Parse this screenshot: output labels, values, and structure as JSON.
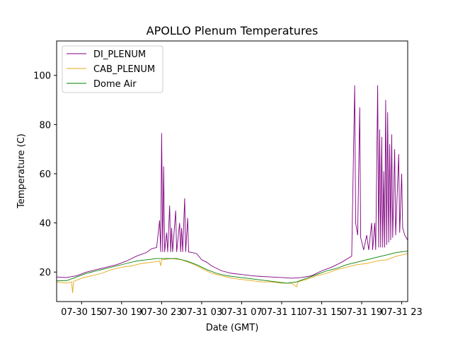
{
  "chart_data": {
    "type": "line",
    "title": "APOLLO Plenum Temperatures",
    "xlabel": "Date (GMT)",
    "ylabel": "Temperature (C)",
    "xlim": [
      12.5,
      47.6
    ],
    "ylim": [
      8,
      114
    ],
    "x_unit_note_hidden": "",
    "x_ticks": [
      {
        "x": 15,
        "label": "07-30 15"
      },
      {
        "x": 19,
        "label": "07-30 19"
      },
      {
        "x": 23,
        "label": "07-30 23"
      },
      {
        "x": 27,
        "label": "07-31 03"
      },
      {
        "x": 31,
        "label": "07-31 07"
      },
      {
        "x": 35,
        "label": "07-31 11"
      },
      {
        "x": 39,
        "label": "07-31 15"
      },
      {
        "x": 43,
        "label": "07-31 19"
      },
      {
        "x": 47,
        "label": "07-31 23"
      }
    ],
    "y_ticks": [
      20,
      40,
      60,
      80,
      100
    ],
    "grid": false,
    "legend_position": "top-left",
    "series": [
      {
        "name": "DI_PLENUM",
        "color": "#800080",
        "points": [
          [
            12.5,
            18.0
          ],
          [
            13.5,
            17.8
          ],
          [
            14.5,
            18.5
          ],
          [
            15.5,
            20.0
          ],
          [
            16.5,
            21.0
          ],
          [
            17.5,
            22.0
          ],
          [
            18.5,
            23.0
          ],
          [
            19.5,
            24.5
          ],
          [
            20.5,
            26.5
          ],
          [
            21.5,
            28.0
          ],
          [
            22.0,
            29.5
          ],
          [
            22.5,
            30.0
          ],
          [
            22.8,
            41
          ],
          [
            22.9,
            28.2
          ],
          [
            23.0,
            76.5
          ],
          [
            23.1,
            28.2
          ],
          [
            23.2,
            63
          ],
          [
            23.3,
            28.2
          ],
          [
            23.5,
            36
          ],
          [
            23.6,
            28.2
          ],
          [
            23.8,
            47
          ],
          [
            23.9,
            28.2
          ],
          [
            24.0,
            38
          ],
          [
            24.1,
            28.2
          ],
          [
            24.4,
            45
          ],
          [
            24.5,
            28.2
          ],
          [
            24.8,
            40
          ],
          [
            24.9,
            28.2
          ],
          [
            25.0,
            38
          ],
          [
            25.1,
            28.2
          ],
          [
            25.3,
            50
          ],
          [
            25.4,
            28.2
          ],
          [
            25.6,
            42
          ],
          [
            25.7,
            28.2
          ],
          [
            26.0,
            28.0
          ],
          [
            26.5,
            27.5
          ],
          [
            27.0,
            25.0
          ],
          [
            27.5,
            24.0
          ],
          [
            28.0,
            22.5
          ],
          [
            28.5,
            21.5
          ],
          [
            29.0,
            20.5
          ],
          [
            30.0,
            19.5
          ],
          [
            31.0,
            19.0
          ],
          [
            32.0,
            18.5
          ],
          [
            33.0,
            18.2
          ],
          [
            34.0,
            18.0
          ],
          [
            35.0,
            17.8
          ],
          [
            36.0,
            17.5
          ],
          [
            37.0,
            17.8
          ],
          [
            38.0,
            18.5
          ],
          [
            39.0,
            20.5
          ],
          [
            40.0,
            22.0
          ],
          [
            41.0,
            24.0
          ],
          [
            42.0,
            26.5
          ],
          [
            42.3,
            96
          ],
          [
            42.4,
            40
          ],
          [
            42.6,
            35
          ],
          [
            42.8,
            87
          ],
          [
            42.9,
            34
          ],
          [
            43.2,
            29
          ],
          [
            43.5,
            35
          ],
          [
            43.7,
            29
          ],
          [
            44.0,
            40
          ],
          [
            44.1,
            29
          ],
          [
            44.3,
            40
          ],
          [
            44.4,
            29
          ],
          [
            44.6,
            96
          ],
          [
            44.7,
            30
          ],
          [
            44.8,
            78
          ],
          [
            44.9,
            30
          ],
          [
            45.0,
            75
          ],
          [
            45.1,
            30
          ],
          [
            45.2,
            61
          ],
          [
            45.3,
            30
          ],
          [
            45.4,
            90
          ],
          [
            45.5,
            31
          ],
          [
            45.6,
            85
          ],
          [
            45.7,
            32
          ],
          [
            45.8,
            72
          ],
          [
            45.9,
            33
          ],
          [
            46.0,
            76
          ],
          [
            46.1,
            34
          ],
          [
            46.3,
            70
          ],
          [
            46.4,
            35
          ],
          [
            46.7,
            68
          ],
          [
            46.8,
            36
          ],
          [
            47.0,
            60
          ],
          [
            47.1,
            38
          ],
          [
            47.3,
            35
          ],
          [
            47.6,
            33
          ]
        ]
      },
      {
        "name": "CAB_PLENUM",
        "color": "#e6a817",
        "points": [
          [
            12.5,
            16.0
          ],
          [
            13.5,
            15.5
          ],
          [
            14.0,
            16.0
          ],
          [
            14.1,
            11.5
          ],
          [
            14.2,
            16.2
          ],
          [
            15.0,
            17.5
          ],
          [
            16.0,
            18.5
          ],
          [
            17.0,
            19.5
          ],
          [
            18.0,
            21.0
          ],
          [
            19.0,
            22.0
          ],
          [
            20.0,
            22.5
          ],
          [
            21.0,
            23.5
          ],
          [
            22.0,
            24.0
          ],
          [
            22.8,
            24.5
          ],
          [
            22.9,
            22.5
          ],
          [
            23.0,
            25.0
          ],
          [
            24.0,
            25.5
          ],
          [
            25.0,
            25.0
          ],
          [
            26.0,
            23.5
          ],
          [
            27.0,
            21.5
          ],
          [
            28.0,
            19.5
          ],
          [
            29.0,
            18.5
          ],
          [
            30.0,
            17.5
          ],
          [
            31.0,
            17.0
          ],
          [
            32.0,
            16.5
          ],
          [
            33.0,
            16.0
          ],
          [
            34.0,
            16.0
          ],
          [
            35.0,
            15.5
          ],
          [
            36.0,
            15.5
          ],
          [
            36.5,
            14.0
          ],
          [
            36.6,
            16.0
          ],
          [
            37.5,
            17.0
          ],
          [
            38.5,
            18.5
          ],
          [
            39.5,
            19.5
          ],
          [
            40.5,
            21.0
          ],
          [
            41.5,
            22.0
          ],
          [
            42.5,
            23.0
          ],
          [
            43.5,
            23.5
          ],
          [
            44.5,
            24.5
          ],
          [
            45.5,
            25.0
          ],
          [
            46.5,
            26.5
          ],
          [
            47.6,
            27.5
          ]
        ]
      },
      {
        "name": "Dome Air",
        "color": "#008000",
        "points": [
          [
            12.5,
            16.5
          ],
          [
            13.5,
            16.5
          ],
          [
            14.5,
            18.0
          ],
          [
            15.5,
            19.5
          ],
          [
            16.5,
            20.5
          ],
          [
            17.5,
            21.5
          ],
          [
            18.5,
            22.5
          ],
          [
            19.5,
            23.5
          ],
          [
            20.5,
            24.5
          ],
          [
            21.5,
            25.0
          ],
          [
            22.5,
            25.5
          ],
          [
            23.5,
            25.5
          ],
          [
            24.5,
            25.5
          ],
          [
            25.5,
            24.5
          ],
          [
            26.5,
            23.0
          ],
          [
            27.5,
            21.0
          ],
          [
            28.5,
            19.5
          ],
          [
            29.5,
            18.5
          ],
          [
            30.5,
            18.0
          ],
          [
            31.5,
            17.5
          ],
          [
            32.5,
            17.0
          ],
          [
            33.5,
            16.5
          ],
          [
            34.5,
            16.0
          ],
          [
            35.5,
            15.5
          ],
          [
            36.5,
            16.0
          ],
          [
            37.5,
            17.5
          ],
          [
            38.5,
            19.0
          ],
          [
            39.5,
            20.5
          ],
          [
            40.5,
            21.5
          ],
          [
            41.5,
            23.0
          ],
          [
            42.5,
            24.0
          ],
          [
            43.5,
            25.0
          ],
          [
            44.5,
            26.0
          ],
          [
            45.5,
            27.0
          ],
          [
            46.5,
            28.0
          ],
          [
            47.6,
            28.5
          ]
        ]
      }
    ]
  }
}
